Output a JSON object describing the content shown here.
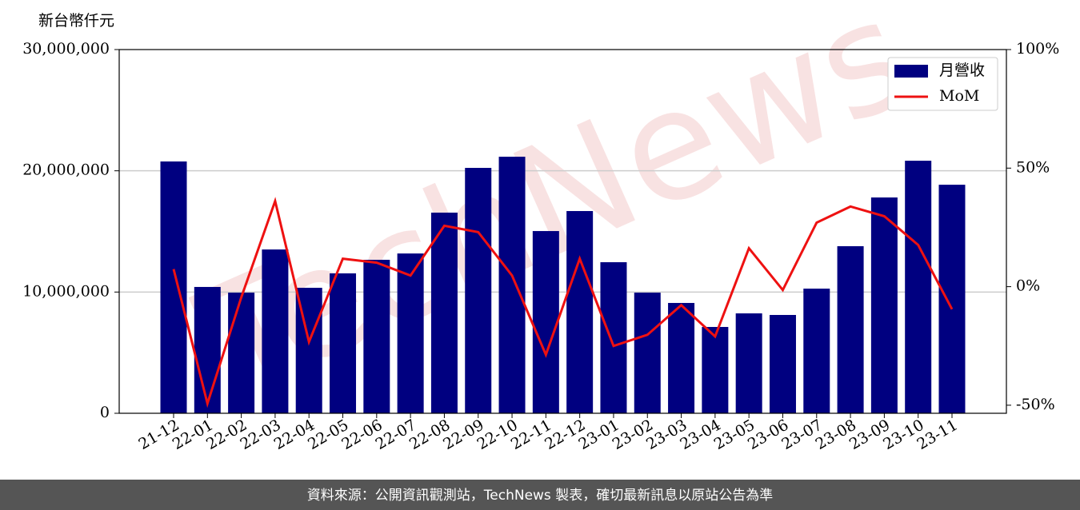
{
  "chart_data": {
    "type": "bar_line",
    "y_axis_label": "新台幣仟元",
    "watermark": "TechNews",
    "footer": "資料來源：公開資訊觀測站，TechNews 製表，確切最新訊息以原站公告為準",
    "categories": [
      "21-12",
      "22-01",
      "22-02",
      "22-03",
      "22-04",
      "22-05",
      "22-06",
      "22-07",
      "22-08",
      "22-09",
      "22-10",
      "22-11",
      "22-12",
      "23-01",
      "23-02",
      "23-03",
      "23-04",
      "23-05",
      "23-06",
      "23-07",
      "23-08",
      "23-09",
      "23-10",
      "23-11"
    ],
    "series": [
      {
        "name": "月營收",
        "type": "bar",
        "color": "#000080",
        "values": [
          20770000,
          10420000,
          9950000,
          13510000,
          10350000,
          11540000,
          12660000,
          13180000,
          16550000,
          20240000,
          21160000,
          15030000,
          16680000,
          12460000,
          9950000,
          9100000,
          7120000,
          8240000,
          8110000,
          10280000,
          13780000,
          17800000,
          20830000,
          18850000
        ]
      },
      {
        "name": "MoM",
        "type": "line",
        "axis": "y2",
        "color": "#ee1111",
        "values": [
          7.4,
          -49.3,
          -4.5,
          36.1,
          -23.3,
          11.8,
          10.1,
          4.7,
          25.7,
          23,
          4.7,
          -28.7,
          11.8,
          -25,
          -20.3,
          -7.8,
          -21,
          16.2,
          -1.4,
          27,
          33.8,
          29.7,
          17.6,
          -9.5
        ]
      }
    ],
    "ylim": [
      0,
      30000000
    ],
    "yticks": [
      0,
      {
        "value": 10000000,
        "label": "10,000,000"
      },
      {
        "value": 20000000,
        "label": "20,000,000"
      },
      {
        "value": 30000000,
        "label": "30,000,000"
      }
    ],
    "y2lim": [
      -53.4,
      100
    ],
    "y2ticks": [
      {
        "value": -50,
        "label": "-50%"
      },
      {
        "value": 0,
        "label": "0%"
      },
      {
        "value": 50,
        "label": "50%"
      },
      {
        "value": 100,
        "label": "100%"
      }
    ],
    "grid": true,
    "legend": "upper right"
  }
}
